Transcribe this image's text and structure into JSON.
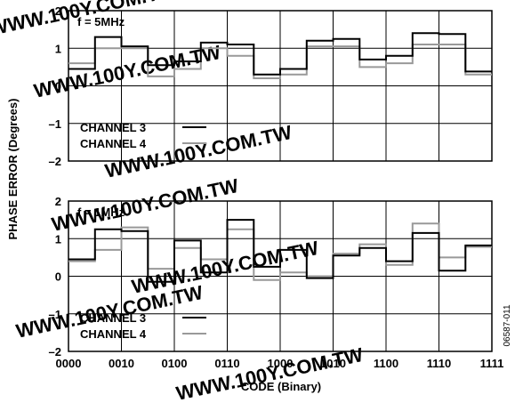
{
  "chart_data": [
    {
      "type": "line",
      "step": true,
      "annotation": "f = 5MHz",
      "ylim": [
        -2,
        2
      ],
      "yticks": [
        "2",
        "1",
        "0",
        "–1",
        "–2"
      ],
      "xlim": [
        0,
        16
      ],
      "grid": true,
      "legend_placement": "bottom-left",
      "series": [
        {
          "name": "CHANNEL 3",
          "color": "#000000",
          "values": [
            0.45,
            1.3,
            1.05,
            0.55,
            0.65,
            1.15,
            1.1,
            0.3,
            0.45,
            1.2,
            1.25,
            0.7,
            0.8,
            1.4,
            1.38,
            0.38
          ]
        },
        {
          "name": "CHANNEL 4",
          "color": "#999999",
          "values": [
            0.6,
            1.0,
            1.0,
            0.25,
            0.45,
            1.0,
            0.8,
            0.2,
            0.3,
            1.05,
            1.05,
            0.5,
            0.6,
            1.1,
            1.1,
            0.3
          ]
        }
      ]
    },
    {
      "type": "line",
      "step": true,
      "annotation": "f = 1MHz",
      "ylim": [
        -2,
        2
      ],
      "yticks": [
        "2",
        "1",
        "0",
        "–1",
        "–2"
      ],
      "xlim": [
        0,
        16
      ],
      "grid": true,
      "legend_placement": "bottom-left",
      "series": [
        {
          "name": "CHANNEL 3",
          "color": "#000000",
          "values": [
            0.45,
            1.25,
            1.2,
            -0.15,
            0.95,
            0.1,
            1.5,
            0.25,
            0.7,
            -0.05,
            0.55,
            0.75,
            0.4,
            1.15,
            0.15,
            0.82
          ]
        },
        {
          "name": "CHANNEL 4",
          "color": "#999999",
          "values": [
            0.4,
            0.7,
            1.3,
            0.2,
            0.75,
            0.45,
            1.25,
            -0.1,
            0.1,
            0.0,
            0.6,
            0.85,
            0.3,
            1.4,
            0.5,
            0.78
          ]
        }
      ]
    }
  ],
  "xaxis": {
    "label": "CODE (Binary)",
    "ticks": [
      "0000",
      "0010",
      "0100",
      "0110",
      "1000",
      "1010",
      "1100",
      "1110",
      "1111"
    ]
  },
  "yaxis": {
    "label": "PHASE ERROR (Degrees)"
  },
  "figure_id": "06587-011",
  "watermark": "WWW.100Y.COM.TW"
}
